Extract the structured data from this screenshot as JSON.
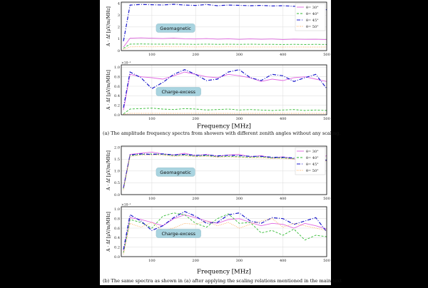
{
  "figure": {
    "caption_a": "(a) The amplitude frequency spectra from showers with different zenith angles without any scaling.",
    "caption_b": "(b) The same spectra as shown in (a) after applying the scaling relations mentioned in the main text",
    "xlabel": "Frequency [MHz]",
    "ylabel": "A · Δf [μV/m/MHz]"
  },
  "chart_data": [
    {
      "type": "line",
      "panel": "a-top",
      "annotation": "Geomagnetic",
      "scale_label": "",
      "xlim": [
        30,
        500
      ],
      "ylim": [
        0,
        4.1
      ],
      "xticks": [
        100,
        200,
        300,
        400,
        500
      ],
      "yticks": [
        0,
        1,
        2,
        3,
        4
      ],
      "grid": true,
      "legend": "right",
      "x": [
        35,
        50,
        75,
        100,
        125,
        150,
        175,
        200,
        225,
        250,
        275,
        300,
        325,
        350,
        375,
        400,
        425,
        450,
        475,
        500
      ],
      "series": [
        {
          "name": "θ= 30°",
          "color": "#e066e0",
          "dash": "solid",
          "values": [
            0.3,
            1.05,
            1.08,
            1.05,
            1.02,
            1.06,
            1.0,
            0.98,
            1.02,
            0.97,
            1.0,
            0.95,
            0.99,
            0.96,
            0.98,
            0.94,
            0.97,
            0.95,
            0.96,
            0.93
          ]
        },
        {
          "name": "θ= 40°",
          "color": "#33bb33",
          "dash": "dash",
          "values": [
            0.2,
            0.55,
            0.56,
            0.55,
            0.54,
            0.55,
            0.54,
            0.53,
            0.55,
            0.53,
            0.54,
            0.53,
            0.54,
            0.53,
            0.53,
            0.52,
            0.53,
            0.52,
            0.53,
            0.52
          ]
        },
        {
          "name": "θ= 45°",
          "color": "#1a1acc",
          "dash": "dashdot",
          "values": [
            0.8,
            3.85,
            3.9,
            3.88,
            3.86,
            3.92,
            3.85,
            3.82,
            3.9,
            3.8,
            3.85,
            3.83,
            3.8,
            3.82,
            3.78,
            3.8,
            3.75,
            3.77,
            3.72,
            3.45
          ]
        },
        {
          "name": "θ= 50°",
          "color": "#ffaa55",
          "dash": "dot",
          "values": [
            0.1,
            0.32,
            0.33,
            0.32,
            0.33,
            0.32,
            0.32,
            0.31,
            0.32,
            0.31,
            0.32,
            0.31,
            0.31,
            0.31,
            0.31,
            0.3,
            0.31,
            0.3,
            0.3,
            0.3
          ]
        }
      ]
    },
    {
      "type": "line",
      "panel": "a-bottom",
      "annotation": "Charge-excess",
      "scale_label": "×10⁻¹",
      "xlim": [
        30,
        500
      ],
      "ylim": [
        0,
        1.05
      ],
      "xticks": [
        100,
        200,
        300,
        400,
        500
      ],
      "yticks": [
        0.0,
        0.2,
        0.4,
        0.6,
        0.8,
        1.0
      ],
      "grid": true,
      "x": [
        35,
        50,
        75,
        100,
        125,
        150,
        175,
        200,
        225,
        250,
        275,
        300,
        325,
        350,
        375,
        400,
        425,
        450,
        475,
        500
      ],
      "series": [
        {
          "name": "θ= 30°",
          "color": "#e066e0",
          "dash": "solid",
          "values": [
            0.1,
            0.85,
            0.8,
            0.78,
            0.75,
            0.82,
            0.9,
            0.85,
            0.8,
            0.78,
            0.85,
            0.82,
            0.78,
            0.7,
            0.75,
            0.72,
            0.78,
            0.8,
            0.75,
            0.7
          ]
        },
        {
          "name": "θ= 40°",
          "color": "#33bb33",
          "dash": "dash",
          "values": [
            0.02,
            0.12,
            0.13,
            0.14,
            0.12,
            0.11,
            0.13,
            0.12,
            0.1,
            0.11,
            0.12,
            0.1,
            0.11,
            0.1,
            0.09,
            0.1,
            0.11,
            0.09,
            0.1,
            0.09
          ]
        },
        {
          "name": "θ= 45°",
          "color": "#1a1acc",
          "dash": "dashdot",
          "values": [
            0.15,
            0.9,
            0.78,
            0.55,
            0.68,
            0.85,
            0.95,
            0.85,
            0.72,
            0.75,
            0.9,
            0.95,
            0.78,
            0.72,
            0.85,
            0.82,
            0.7,
            0.78,
            0.85,
            0.55
          ]
        },
        {
          "name": "θ= 50°",
          "color": "#ffaa55",
          "dash": "dot",
          "values": [
            0.01,
            0.03,
            0.03,
            0.03,
            0.03,
            0.03,
            0.03,
            0.03,
            0.03,
            0.03,
            0.03,
            0.03,
            0.03,
            0.03,
            0.03,
            0.03,
            0.03,
            0.03,
            0.03,
            0.03
          ]
        }
      ]
    },
    {
      "type": "line",
      "panel": "b-top",
      "annotation": "Geomagnetic",
      "scale_label": "",
      "xlim": [
        30,
        500
      ],
      "ylim": [
        0,
        2.05
      ],
      "xticks": [
        100,
        200,
        300,
        400,
        500
      ],
      "yticks": [
        0.0,
        0.5,
        1.0,
        1.5,
        2.0
      ],
      "grid": true,
      "legend": "right",
      "x": [
        35,
        50,
        75,
        100,
        125,
        150,
        175,
        200,
        225,
        250,
        275,
        300,
        325,
        350,
        375,
        400,
        425,
        450,
        475,
        500
      ],
      "series": [
        {
          "name": "θ= 30°",
          "color": "#e066e0",
          "dash": "solid",
          "values": [
            0.3,
            1.7,
            1.75,
            1.8,
            1.72,
            1.68,
            1.75,
            1.65,
            1.7,
            1.62,
            1.68,
            1.7,
            1.6,
            1.65,
            1.55,
            1.6,
            1.5,
            1.55,
            1.45,
            1.65
          ]
        },
        {
          "name": "θ= 40°",
          "color": "#33bb33",
          "dash": "dash",
          "values": [
            0.25,
            1.65,
            1.7,
            1.72,
            1.7,
            1.65,
            1.68,
            1.62,
            1.65,
            1.6,
            1.62,
            1.6,
            1.58,
            1.6,
            1.55,
            1.55,
            1.52,
            1.52,
            1.48,
            1.45
          ]
        },
        {
          "name": "θ= 45°",
          "color": "#1a1acc",
          "dash": "dashdot",
          "values": [
            0.28,
            1.68,
            1.72,
            1.7,
            1.72,
            1.68,
            1.7,
            1.66,
            1.68,
            1.64,
            1.66,
            1.65,
            1.62,
            1.62,
            1.58,
            1.58,
            1.55,
            1.55,
            1.5,
            1.45
          ]
        },
        {
          "name": "θ= 50°",
          "color": "#ffaa55",
          "dash": "dot",
          "values": [
            0.2,
            1.62,
            1.66,
            1.68,
            1.66,
            1.62,
            1.64,
            1.6,
            1.62,
            1.58,
            1.6,
            1.58,
            1.56,
            1.56,
            1.52,
            1.52,
            1.5,
            1.5,
            1.46,
            1.42
          ]
        }
      ]
    },
    {
      "type": "line",
      "panel": "b-bottom",
      "annotation": "Charge-excess",
      "scale_label": "×10⁻¹",
      "xlim": [
        30,
        500
      ],
      "ylim": [
        0,
        1.05
      ],
      "xticks": [
        100,
        200,
        300,
        400,
        500
      ],
      "yticks": [
        0.0,
        0.2,
        0.4,
        0.6,
        0.8,
        1.0
      ],
      "grid": true,
      "x": [
        35,
        50,
        75,
        100,
        125,
        150,
        175,
        200,
        225,
        250,
        275,
        300,
        325,
        350,
        375,
        400,
        425,
        450,
        475,
        500
      ],
      "series": [
        {
          "name": "θ= 30°",
          "color": "#e066e0",
          "dash": "solid",
          "values": [
            0.1,
            0.82,
            0.78,
            0.72,
            0.65,
            0.8,
            0.88,
            0.82,
            0.75,
            0.7,
            0.78,
            0.8,
            0.72,
            0.65,
            0.7,
            0.68,
            0.6,
            0.7,
            0.65,
            0.58
          ]
        },
        {
          "name": "θ= 40°",
          "color": "#33bb33",
          "dash": "dash",
          "values": [
            0.08,
            0.78,
            0.72,
            0.6,
            0.85,
            0.92,
            0.88,
            0.7,
            0.62,
            0.8,
            0.9,
            0.7,
            0.72,
            0.5,
            0.55,
            0.45,
            0.58,
            0.35,
            0.45,
            0.42
          ]
        },
        {
          "name": "θ= 45°",
          "color": "#1a1acc",
          "dash": "dashdot",
          "values": [
            0.15,
            0.88,
            0.75,
            0.55,
            0.65,
            0.82,
            0.95,
            0.85,
            0.7,
            0.72,
            0.88,
            0.92,
            0.75,
            0.7,
            0.82,
            0.8,
            0.68,
            0.75,
            0.82,
            0.52
          ]
        },
        {
          "name": "θ= 50°",
          "color": "#ffaa55",
          "dash": "dot",
          "values": [
            0.05,
            0.7,
            0.62,
            0.72,
            0.55,
            0.6,
            0.7,
            0.68,
            0.75,
            0.65,
            0.72,
            0.6,
            0.68,
            0.75,
            0.8,
            0.62,
            0.7,
            0.65,
            0.6,
            0.55
          ]
        }
      ]
    }
  ]
}
